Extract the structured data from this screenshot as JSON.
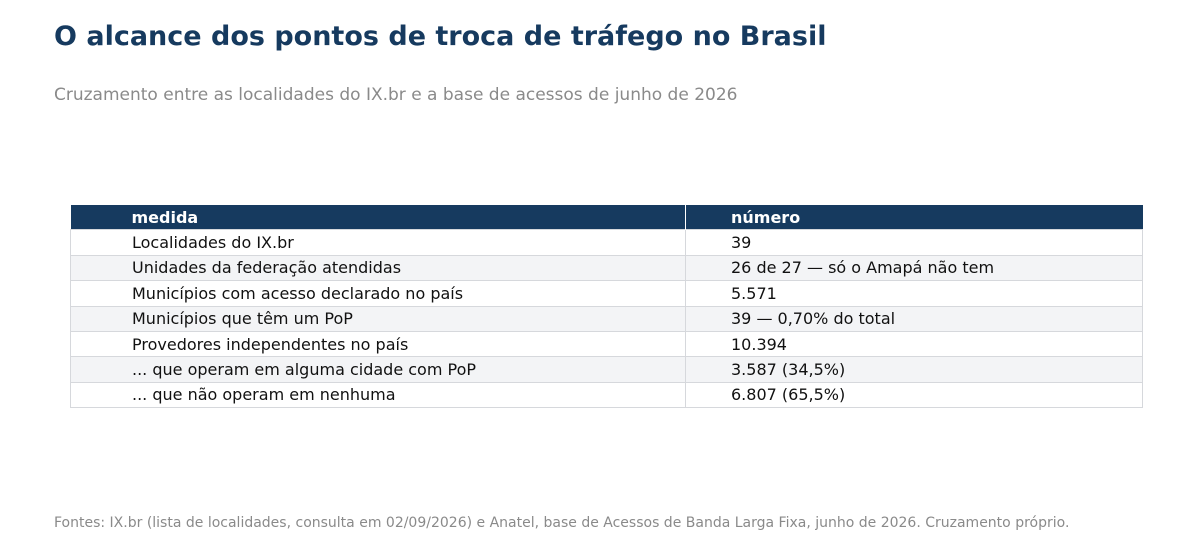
{
  "title": "O alcance dos pontos de troca de tráfego no Brasil",
  "subtitle": "Cruzamento entre as localidades do IX.br e a base de acessos de junho de 2026",
  "source": "Fontes: IX.br (lista de localidades, consulta em 02/09/2026) e Anatel, base de Acessos de Banda Larga Fixa, junho de 2026. Cruzamento próprio.",
  "colors": {
    "header_bg": "#163a5f",
    "title": "#163a5f",
    "muted_text": "#8a8a8a",
    "row_alt": "#f3f4f6",
    "border": "#d6d8dc"
  },
  "chart_data": {
    "type": "table",
    "columns": [
      "medida",
      "número"
    ],
    "rows": [
      [
        "Localidades do IX.br",
        "39"
      ],
      [
        "Unidades da federação atendidas",
        "26 de 27 — só o Amapá não tem"
      ],
      [
        "Municípios com acesso declarado no país",
        "5.571"
      ],
      [
        "Municípios que têm um PoP",
        "39 — 0,70% do total"
      ],
      [
        "Provedores independentes no país",
        "10.394"
      ],
      [
        "... que operam em alguma cidade com PoP",
        "3.587  (34,5%)"
      ],
      [
        "... que não operam em nenhuma",
        "6.807  (65,5%)"
      ]
    ]
  }
}
